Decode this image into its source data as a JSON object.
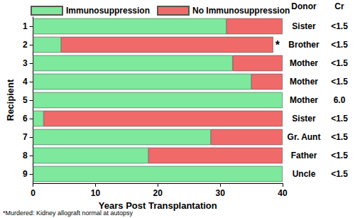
{
  "chart_data": {
    "type": "bar",
    "orientation": "horizontal",
    "stacked": true,
    "legend": "top",
    "grid": false,
    "categories": [
      "1",
      "2",
      "3",
      "4",
      "5",
      "6",
      "7",
      "8",
      "9"
    ],
    "series": [
      {
        "name": "Immunosuppression",
        "color": "#7ee89c",
        "values": [
          31,
          4.5,
          32,
          35,
          40,
          1.7,
          28.5,
          18.5,
          40
        ]
      },
      {
        "name": "No Immunosuppression",
        "color": "#f06a6a",
        "values": [
          9,
          34,
          8,
          5,
          0,
          38.3,
          11.5,
          21.5,
          0
        ]
      }
    ],
    "xlim": [
      0,
      40
    ],
    "xticks": [
      0,
      10,
      20,
      30,
      40
    ],
    "x_label": "Years Post Transplantation",
    "y_label": "Recipient",
    "columns": [
      {
        "header": "Donor",
        "values": [
          "Sister",
          "Brother",
          "Mother",
          "Mother",
          "Mother",
          "Sister",
          "Gr. Aunt",
          "Father",
          "Uncle"
        ]
      },
      {
        "header": "Cr",
        "values": [
          "<1.5",
          "<1.5",
          "<1.5",
          "<1.5",
          "6.0",
          "<1.5",
          "<1.5",
          "<1.5",
          "<1.5"
        ]
      }
    ],
    "row_marks": [
      {
        "category": "2",
        "text": "*"
      }
    ],
    "footnote": "*Murdered: Kidney allograft normal at autopsy"
  }
}
